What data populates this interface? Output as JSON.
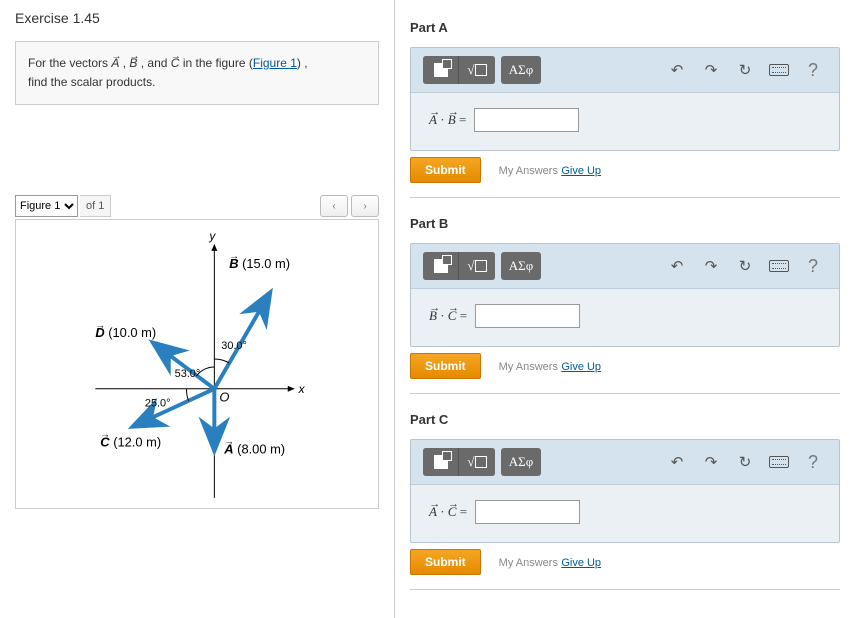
{
  "exercise": {
    "title": "Exercise 1.45"
  },
  "problem": {
    "prefix": "For the vectors ",
    "v1": "A",
    "sep1": ", ",
    "v2": "B",
    "sep2": ", and ",
    "v3": "C",
    "link_intro": " in the figure (",
    "figure_link": "Figure 1",
    "link_close": ") ,",
    "line2": "find the scalar products."
  },
  "figure_bar": {
    "selected": "Figure 1",
    "of_label": "of 1",
    "prev": "‹",
    "next": "›"
  },
  "figure": {
    "axis_x": "x",
    "axis_y": "y",
    "origin": "O",
    "vec_A": "A",
    "vec_A_mag": "(8.00 m)",
    "vec_B": "B",
    "vec_B_mag": "(15.0 m)",
    "vec_C": "C",
    "vec_C_mag": "(12.0 m)",
    "vec_D": "D",
    "vec_D_mag": "(10.0 m)",
    "angle_B": "30.0°",
    "angle_D": "53.0°",
    "angle_C": "25.0°",
    "colors": {
      "arrow": "#2a7fbf",
      "axis": "#000",
      "text": "#000"
    }
  },
  "toolbar": {
    "greek": "ΑΣφ",
    "undo": "↶",
    "redo": "↷",
    "reset": "↻",
    "help": "?"
  },
  "parts": [
    {
      "title": "Part A",
      "lhs_v1": "A",
      "lhs_v2": "B"
    },
    {
      "title": "Part B",
      "lhs_v1": "B",
      "lhs_v2": "C"
    },
    {
      "title": "Part C",
      "lhs_v1": "A",
      "lhs_v2": "C"
    }
  ],
  "buttons": {
    "submit": "Submit",
    "my_answers": "My Answers",
    "give_up": "Give Up"
  }
}
